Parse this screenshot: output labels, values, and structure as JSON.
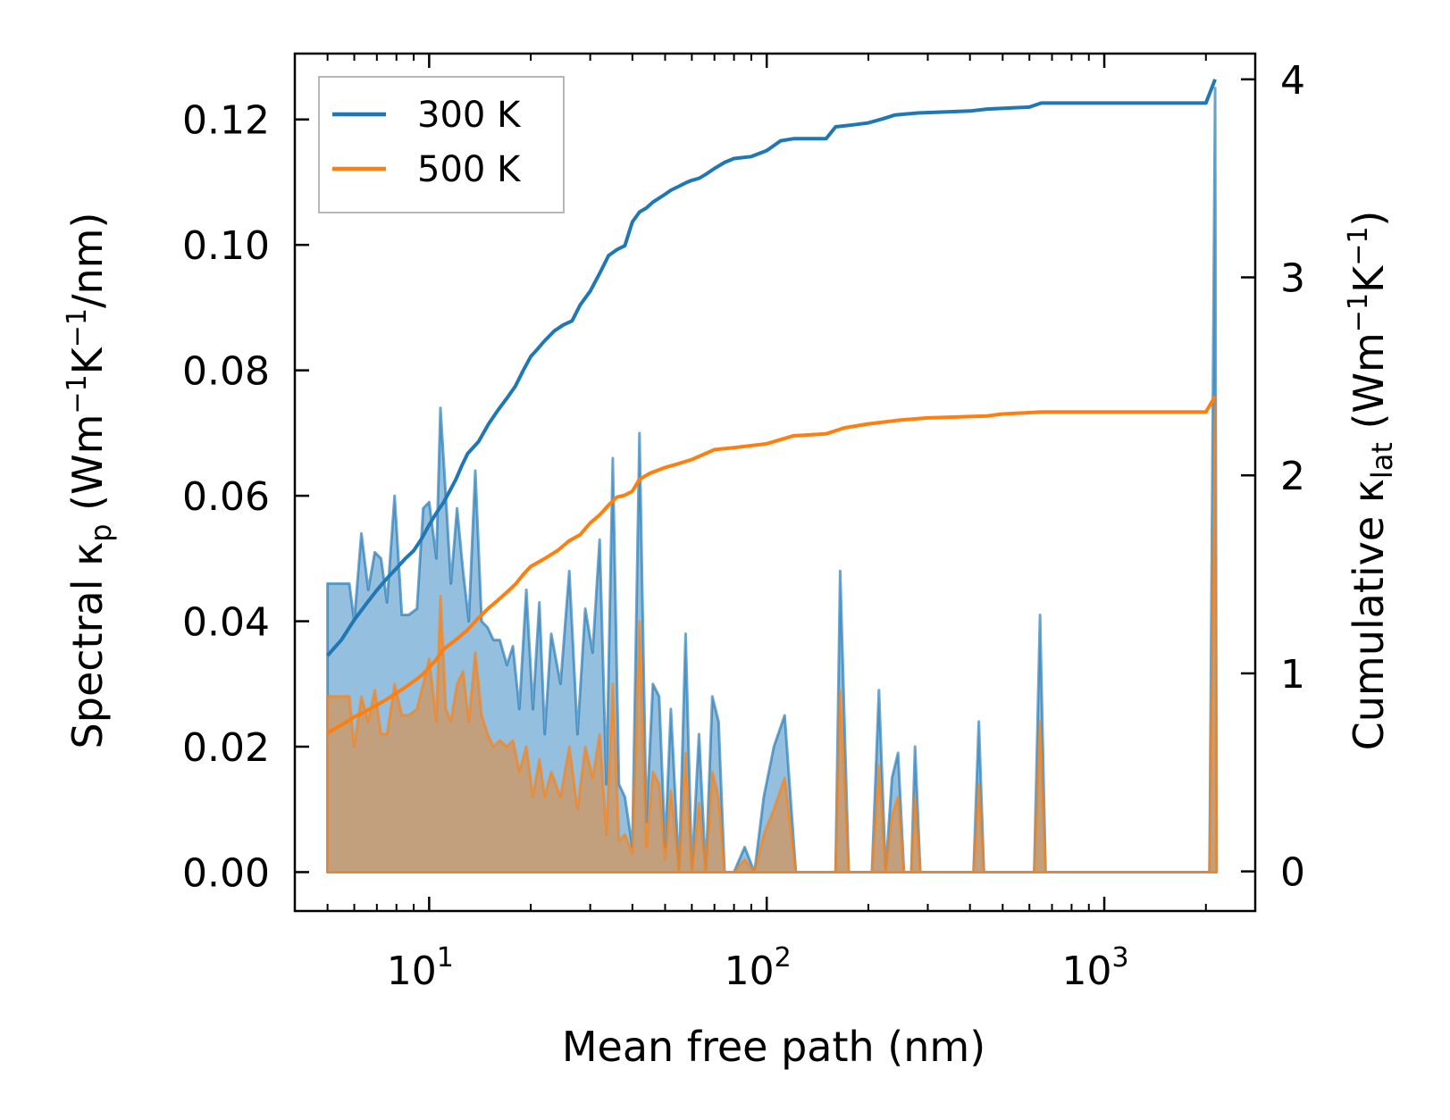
{
  "chart_data": {
    "type": "line",
    "title": "",
    "xlabel": "Mean free path (nm)",
    "ylabel_left": {
      "main": "Spectral κ",
      "sub": "p",
      "units_open": " (Wm",
      "sup1": "−1",
      "mid": "K",
      "sup2": "−1",
      "units_close": "/nm)"
    },
    "ylabel_right": {
      "main": "Cumulative κ",
      "sub": "lat",
      "units_open": " (Wm",
      "sup1": "−1",
      "mid": "K",
      "sup2": "−1",
      "units_close": ")"
    },
    "xscale": "log",
    "xlim": [
      4.0,
      2800
    ],
    "ylim_left": [
      -0.0062,
      0.1305
    ],
    "ylim_right": [
      -0.2,
      4.13
    ],
    "x_ticks": [
      {
        "value": 10,
        "base": "10",
        "exp": "1"
      },
      {
        "value": 100,
        "base": "10",
        "exp": "2"
      },
      {
        "value": 1000,
        "base": "10",
        "exp": "3"
      }
    ],
    "yticks_left": [
      "0.00",
      "0.02",
      "0.04",
      "0.06",
      "0.08",
      "0.10",
      "0.12"
    ],
    "yticks_right": [
      "0",
      "1",
      "2",
      "3",
      "4"
    ],
    "legend": {
      "position": "upper-left",
      "entries": [
        "300 K",
        "500 K"
      ]
    },
    "colors": {
      "s300": "#1f77b4",
      "s500": "#ff7f0e",
      "fill300": "#8fbcdc",
      "fill500": "#c89c72"
    },
    "series": [
      {
        "name": "300 K",
        "spectral": [
          [
            5.0,
            0.0
          ],
          [
            5.0,
            0.046
          ],
          [
            5.5,
            0.046
          ],
          [
            5.8,
            0.046
          ],
          [
            6.0,
            0.04
          ],
          [
            6.3,
            0.054
          ],
          [
            6.6,
            0.045
          ],
          [
            6.9,
            0.051
          ],
          [
            7.2,
            0.05
          ],
          [
            7.5,
            0.043
          ],
          [
            7.9,
            0.06
          ],
          [
            8.3,
            0.041
          ],
          [
            8.7,
            0.041
          ],
          [
            9.2,
            0.042
          ],
          [
            9.6,
            0.058
          ],
          [
            10.0,
            0.059
          ],
          [
            10.5,
            0.05
          ],
          [
            10.8,
            0.074
          ],
          [
            11.2,
            0.06
          ],
          [
            11.6,
            0.046
          ],
          [
            12.1,
            0.058
          ],
          [
            12.6,
            0.048
          ],
          [
            13.1,
            0.04
          ],
          [
            13.7,
            0.064
          ],
          [
            14.3,
            0.04
          ],
          [
            14.9,
            0.039
          ],
          [
            15.5,
            0.037
          ],
          [
            16.2,
            0.037
          ],
          [
            17.0,
            0.033
          ],
          [
            17.7,
            0.036
          ],
          [
            18.5,
            0.026
          ],
          [
            19.4,
            0.045
          ],
          [
            20.3,
            0.026
          ],
          [
            21.2,
            0.043
          ],
          [
            22.0,
            0.022
          ],
          [
            23.0,
            0.038
          ],
          [
            24.5,
            0.03
          ],
          [
            26.0,
            0.048
          ],
          [
            27.5,
            0.022
          ],
          [
            29.0,
            0.042
          ],
          [
            30.5,
            0.035
          ],
          [
            32.0,
            0.053
          ],
          [
            33.5,
            0.014
          ],
          [
            35.0,
            0.066
          ],
          [
            36.5,
            0.014
          ],
          [
            38.0,
            0.012
          ],
          [
            40.0,
            0.004
          ],
          [
            42.0,
            0.07
          ],
          [
            44.0,
            0.008
          ],
          [
            46.0,
            0.03
          ],
          [
            48.0,
            0.028
          ],
          [
            50.0,
            0.004
          ],
          [
            52.0,
            0.026
          ],
          [
            55.0,
            0.0
          ],
          [
            57.5,
            0.038
          ],
          [
            60.0,
            0.0
          ],
          [
            63.0,
            0.022
          ],
          [
            66.0,
            0.0
          ],
          [
            69.0,
            0.028
          ],
          [
            72.0,
            0.024
          ],
          [
            75.0,
            0.0
          ],
          [
            80.0,
            0.0
          ],
          [
            86.0,
            0.004
          ],
          [
            92.0,
            0.0
          ],
          [
            98.0,
            0.012
          ],
          [
            105.0,
            0.02
          ],
          [
            113.0,
            0.025
          ],
          [
            122.0,
            0.0
          ],
          [
            160.0,
            0.0
          ],
          [
            165.0,
            0.048
          ],
          [
            175.0,
            0.0
          ],
          [
            205.0,
            0.0
          ],
          [
            215.0,
            0.029
          ],
          [
            225.0,
            0.0
          ],
          [
            235.0,
            0.015
          ],
          [
            245.0,
            0.019
          ],
          [
            255.0,
            0.0
          ],
          [
            268.0,
            0.0
          ],
          [
            275.0,
            0.02
          ],
          [
            285.0,
            0.0
          ],
          [
            410.0,
            0.0
          ],
          [
            425.0,
            0.024
          ],
          [
            440.0,
            0.0
          ],
          [
            620.0,
            0.0
          ],
          [
            645.0,
            0.041
          ],
          [
            670.0,
            0.0
          ],
          [
            2050.0,
            0.0
          ],
          [
            2130.0,
            0.125
          ],
          [
            2150.0,
            0.0
          ]
        ],
        "cumulative": [
          [
            5.0,
            1.09
          ],
          [
            5.5,
            1.17
          ],
          [
            6.0,
            1.27
          ],
          [
            6.5,
            1.35
          ],
          [
            7.0,
            1.42
          ],
          [
            7.5,
            1.48
          ],
          [
            8.0,
            1.53
          ],
          [
            8.5,
            1.58
          ],
          [
            9.0,
            1.62
          ],
          [
            9.5,
            1.68
          ],
          [
            10.0,
            1.75
          ],
          [
            10.5,
            1.81
          ],
          [
            11.0,
            1.86
          ],
          [
            11.5,
            1.92
          ],
          [
            12.0,
            1.98
          ],
          [
            12.5,
            2.05
          ],
          [
            13.0,
            2.11
          ],
          [
            14.0,
            2.17
          ],
          [
            15.0,
            2.26
          ],
          [
            16.0,
            2.33
          ],
          [
            17.0,
            2.39
          ],
          [
            18.0,
            2.45
          ],
          [
            19.0,
            2.53
          ],
          [
            20.0,
            2.6
          ],
          [
            21.0,
            2.64
          ],
          [
            22.0,
            2.68
          ],
          [
            23.5,
            2.73
          ],
          [
            25.0,
            2.76
          ],
          [
            26.5,
            2.78
          ],
          [
            28.0,
            2.86
          ],
          [
            30.0,
            2.93
          ],
          [
            32.0,
            3.02
          ],
          [
            34.0,
            3.11
          ],
          [
            36.0,
            3.14
          ],
          [
            38.0,
            3.16
          ],
          [
            40.0,
            3.28
          ],
          [
            42.0,
            3.33
          ],
          [
            44.0,
            3.35
          ],
          [
            46.0,
            3.38
          ],
          [
            48.0,
            3.4
          ],
          [
            50.0,
            3.42
          ],
          [
            52.0,
            3.44
          ],
          [
            55.0,
            3.46
          ],
          [
            58.0,
            3.48
          ],
          [
            60.0,
            3.49
          ],
          [
            63.0,
            3.5
          ],
          [
            66.0,
            3.52
          ],
          [
            70.0,
            3.55
          ],
          [
            75.0,
            3.58
          ],
          [
            80.0,
            3.6
          ],
          [
            90.0,
            3.61
          ],
          [
            100.0,
            3.64
          ],
          [
            110.0,
            3.69
          ],
          [
            120.0,
            3.7
          ],
          [
            150.0,
            3.7
          ],
          [
            160.0,
            3.76
          ],
          [
            180.0,
            3.77
          ],
          [
            200.0,
            3.78
          ],
          [
            220.0,
            3.8
          ],
          [
            240.0,
            3.82
          ],
          [
            280.0,
            3.83
          ],
          [
            400.0,
            3.84
          ],
          [
            450.0,
            3.85
          ],
          [
            600.0,
            3.86
          ],
          [
            650.0,
            3.88
          ],
          [
            2000.0,
            3.88
          ],
          [
            2130.0,
            4.0
          ]
        ]
      },
      {
        "name": "500 K",
        "spectral": [
          [
            5.0,
            0.0
          ],
          [
            5.0,
            0.028
          ],
          [
            5.5,
            0.028
          ],
          [
            5.8,
            0.028
          ],
          [
            6.0,
            0.02
          ],
          [
            6.3,
            0.028
          ],
          [
            6.6,
            0.024
          ],
          [
            6.9,
            0.029
          ],
          [
            7.2,
            0.022
          ],
          [
            7.5,
            0.022
          ],
          [
            7.9,
            0.03
          ],
          [
            8.3,
            0.025
          ],
          [
            8.7,
            0.025
          ],
          [
            9.2,
            0.026
          ],
          [
            9.6,
            0.03
          ],
          [
            10.0,
            0.034
          ],
          [
            10.5,
            0.024
          ],
          [
            10.8,
            0.044
          ],
          [
            11.2,
            0.026
          ],
          [
            11.6,
            0.024
          ],
          [
            12.1,
            0.03
          ],
          [
            12.6,
            0.032
          ],
          [
            13.1,
            0.024
          ],
          [
            13.7,
            0.035
          ],
          [
            14.3,
            0.025
          ],
          [
            14.9,
            0.022
          ],
          [
            15.5,
            0.02
          ],
          [
            16.2,
            0.021
          ],
          [
            17.0,
            0.02
          ],
          [
            17.7,
            0.021
          ],
          [
            18.5,
            0.016
          ],
          [
            19.4,
            0.02
          ],
          [
            20.3,
            0.012
          ],
          [
            21.2,
            0.018
          ],
          [
            22.0,
            0.012
          ],
          [
            23.0,
            0.016
          ],
          [
            24.5,
            0.012
          ],
          [
            26.0,
            0.02
          ],
          [
            27.5,
            0.01
          ],
          [
            29.0,
            0.02
          ],
          [
            30.5,
            0.015
          ],
          [
            32.0,
            0.022
          ],
          [
            33.5,
            0.006
          ],
          [
            35.0,
            0.03
          ],
          [
            36.5,
            0.005
          ],
          [
            38.0,
            0.006
          ],
          [
            40.0,
            0.003
          ],
          [
            42.0,
            0.04
          ],
          [
            44.0,
            0.004
          ],
          [
            46.0,
            0.016
          ],
          [
            48.0,
            0.014
          ],
          [
            50.0,
            0.002
          ],
          [
            52.0,
            0.013
          ],
          [
            55.0,
            0.0
          ],
          [
            57.5,
            0.019
          ],
          [
            60.0,
            0.0
          ],
          [
            63.0,
            0.011
          ],
          [
            66.0,
            0.0
          ],
          [
            69.0,
            0.016
          ],
          [
            72.0,
            0.012
          ],
          [
            75.0,
            0.0
          ],
          [
            80.0,
            0.0
          ],
          [
            86.0,
            0.002
          ],
          [
            92.0,
            0.0
          ],
          [
            98.0,
            0.006
          ],
          [
            105.0,
            0.01
          ],
          [
            113.0,
            0.015
          ],
          [
            122.0,
            0.0
          ],
          [
            160.0,
            0.0
          ],
          [
            165.0,
            0.029
          ],
          [
            175.0,
            0.0
          ],
          [
            205.0,
            0.0
          ],
          [
            215.0,
            0.017
          ],
          [
            225.0,
            0.0
          ],
          [
            235.0,
            0.009
          ],
          [
            245.0,
            0.012
          ],
          [
            255.0,
            0.0
          ],
          [
            268.0,
            0.0
          ],
          [
            275.0,
            0.012
          ],
          [
            285.0,
            0.0
          ],
          [
            410.0,
            0.0
          ],
          [
            425.0,
            0.014
          ],
          [
            440.0,
            0.0
          ],
          [
            620.0,
            0.0
          ],
          [
            645.0,
            0.024
          ],
          [
            670.0,
            0.0
          ],
          [
            2050.0,
            0.0
          ],
          [
            2130.0,
            0.075
          ],
          [
            2150.0,
            0.0
          ]
        ],
        "cumulative": [
          [
            5.0,
            0.7
          ],
          [
            5.5,
            0.74
          ],
          [
            6.0,
            0.78
          ],
          [
            6.5,
            0.81
          ],
          [
            7.0,
            0.84
          ],
          [
            7.5,
            0.87
          ],
          [
            8.0,
            0.9
          ],
          [
            8.5,
            0.93
          ],
          [
            9.0,
            0.96
          ],
          [
            9.5,
            0.99
          ],
          [
            10.0,
            1.03
          ],
          [
            10.5,
            1.07
          ],
          [
            11.0,
            1.12
          ],
          [
            12.0,
            1.17
          ],
          [
            13.0,
            1.22
          ],
          [
            14.0,
            1.28
          ],
          [
            15.0,
            1.33
          ],
          [
            16.0,
            1.37
          ],
          [
            17.0,
            1.41
          ],
          [
            18.0,
            1.45
          ],
          [
            19.0,
            1.5
          ],
          [
            20.0,
            1.54
          ],
          [
            22.0,
            1.58
          ],
          [
            24.0,
            1.62
          ],
          [
            26.0,
            1.67
          ],
          [
            28.0,
            1.7
          ],
          [
            30.0,
            1.76
          ],
          [
            32.0,
            1.8
          ],
          [
            34.0,
            1.85
          ],
          [
            36.0,
            1.89
          ],
          [
            38.0,
            1.9
          ],
          [
            40.0,
            1.92
          ],
          [
            42.0,
            1.98
          ],
          [
            45.0,
            2.01
          ],
          [
            50.0,
            2.04
          ],
          [
            55.0,
            2.06
          ],
          [
            60.0,
            2.08
          ],
          [
            70.0,
            2.13
          ],
          [
            80.0,
            2.14
          ],
          [
            100.0,
            2.16
          ],
          [
            120.0,
            2.2
          ],
          [
            150.0,
            2.21
          ],
          [
            170.0,
            2.24
          ],
          [
            200.0,
            2.26
          ],
          [
            250.0,
            2.28
          ],
          [
            300.0,
            2.29
          ],
          [
            450.0,
            2.3
          ],
          [
            500.0,
            2.31
          ],
          [
            650.0,
            2.32
          ],
          [
            2000.0,
            2.32
          ],
          [
            2130.0,
            2.4
          ]
        ]
      }
    ]
  }
}
